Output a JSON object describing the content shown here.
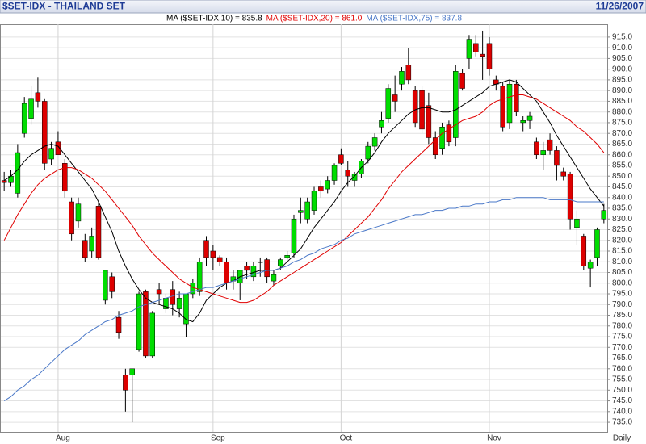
{
  "chart_data": {
    "type": "candlestick",
    "title": "$SET-IDX - THAILAND SET",
    "date": "11/26/2007",
    "xlabel": "Daily",
    "categories": [
      null,
      null,
      null,
      null,
      null,
      null,
      null,
      null,
      "Aug",
      null,
      null,
      null,
      null,
      null,
      null,
      null,
      null,
      null,
      null,
      null,
      null,
      null,
      null,
      null,
      null,
      null,
      null,
      null,
      null,
      null,
      null,
      "Sep",
      null,
      null,
      null,
      null,
      null,
      null,
      null,
      null,
      null,
      null,
      null,
      null,
      null,
      null,
      null,
      null,
      null,
      null,
      "Oct",
      null,
      null,
      null,
      null,
      null,
      null,
      null,
      null,
      null,
      null,
      null,
      null,
      null,
      null,
      null,
      null,
      null,
      null,
      null,
      null,
      null,
      "Nov",
      null,
      null,
      null,
      null,
      null,
      null,
      null,
      null,
      null,
      null,
      null,
      null,
      null,
      null,
      null,
      null,
      null
    ],
    "open": [
      848,
      847,
      842,
      870,
      877,
      889,
      885,
      858,
      866,
      856,
      838,
      829,
      820,
      815,
      836,
      792,
      803,
      784,
      757,
      757,
      769,
      796,
      766,
      797,
      788,
      797,
      788,
      781,
      795,
      796,
      820,
      815,
      812,
      810,
      801,
      800,
      808,
      803,
      810,
      811,
      801,
      808,
      812,
      814,
      833,
      830,
      834,
      845,
      844,
      848,
      860,
      853,
      848,
      851,
      858,
      864,
      873,
      877,
      888,
      893,
      902,
      890,
      890,
      883,
      868,
      863,
      874,
      868,
      898,
      905,
      912,
      907,
      912,
      895,
      892,
      875,
      893,
      875,
      876,
      866,
      860,
      867,
      862,
      852,
      851,
      826,
      822,
      807,
      812,
      830
    ],
    "high": [
      852,
      853,
      865,
      887,
      892,
      896,
      886,
      866,
      871,
      858,
      840,
      840,
      823,
      826,
      838,
      806,
      805,
      787,
      760,
      760,
      796,
      797,
      787,
      800,
      795,
      801,
      796,
      795,
      802,
      812,
      822,
      818,
      813,
      812,
      806,
      806,
      810,
      810,
      812,
      812,
      806,
      812,
      815,
      832,
      840,
      840,
      845,
      848,
      850,
      856,
      863,
      857,
      852,
      858,
      866,
      870,
      880,
      893,
      897,
      901,
      910,
      892,
      892,
      889,
      871,
      875,
      876,
      902,
      900,
      916,
      916,
      918,
      915,
      897,
      894,
      895,
      895,
      878,
      880,
      868,
      866,
      870,
      864,
      854,
      852,
      834,
      823,
      811,
      826,
      837
    ],
    "low": [
      843,
      845,
      840,
      868,
      874,
      882,
      853,
      855,
      860,
      840,
      820,
      826,
      810,
      812,
      811,
      790,
      793,
      774,
      740,
      735,
      768,
      765,
      765,
      790,
      786,
      785,
      784,
      775,
      793,
      794,
      808,
      806,
      808,
      797,
      797,
      792,
      802,
      801,
      803,
      800,
      799,
      806,
      811,
      812,
      828,
      828,
      832,
      840,
      842,
      846,
      855,
      845,
      845,
      849,
      856,
      862,
      870,
      875,
      880,
      890,
      893,
      873,
      870,
      865,
      858,
      860,
      864,
      864,
      890,
      900,
      906,
      895,
      897,
      890,
      871,
      872,
      878,
      871,
      872,
      858,
      853,
      860,
      848,
      848,
      825,
      818,
      806,
      798,
      808,
      828
    ],
    "close": [
      847,
      850,
      861,
      884,
      886,
      885,
      856,
      863,
      860,
      843,
      823,
      837,
      812,
      822,
      812,
      806,
      796,
      777,
      750,
      760,
      795,
      766,
      786,
      795,
      793,
      790,
      793,
      795,
      800,
      810,
      812,
      812,
      810,
      800,
      803,
      806,
      806,
      808,
      810,
      803,
      804,
      811,
      813,
      830,
      834,
      838,
      843,
      843,
      848,
      855,
      856,
      850,
      851,
      857,
      864,
      868,
      876,
      891,
      885,
      899,
      895,
      875,
      872,
      868,
      860,
      873,
      866,
      899,
      891,
      914,
      908,
      906,
      900,
      893,
      873,
      893,
      880,
      876,
      878,
      860,
      862,
      862,
      855,
      850,
      830,
      830,
      808,
      810,
      825,
      834
    ],
    "up_color": "#00dd00",
    "down_color": "#dd0000",
    "series": [
      {
        "name": "MA ($SET-IDX,10) = 835.8",
        "color": "#000000",
        "values": [
          848,
          850,
          853,
          857,
          860,
          862,
          864,
          865,
          864,
          860,
          856,
          852,
          848,
          844,
          838,
          831,
          824,
          815,
          808,
          802,
          797,
          793,
          791,
          790,
          789,
          788,
          786,
          783,
          782,
          786,
          792,
          795,
          798,
          800,
          801,
          803,
          804,
          805,
          806,
          806,
          806,
          807,
          810,
          813,
          816,
          821,
          826,
          830,
          834,
          838,
          843,
          847,
          850,
          854,
          857,
          861,
          866,
          870,
          873,
          876,
          879,
          881,
          882,
          882,
          881,
          880,
          880,
          881,
          883,
          885,
          887,
          889,
          892,
          893,
          894,
          895,
          894,
          891,
          888,
          885,
          880,
          875,
          869,
          864,
          859,
          854,
          849,
          844,
          840,
          836
        ]
      },
      {
        "name": "MA ($SET-IDX,20) = 861.0",
        "color": "#e00000",
        "values": [
          820,
          826,
          832,
          837,
          842,
          846,
          849,
          851,
          853,
          854,
          854,
          853,
          851,
          849,
          846,
          843,
          839,
          835,
          831,
          827,
          822,
          818,
          814,
          811,
          808,
          805,
          802,
          800,
          798,
          797,
          796,
          795,
          794,
          793,
          792,
          791,
          791,
          792,
          794,
          796,
          799,
          801,
          803,
          805,
          807,
          809,
          811,
          813,
          815,
          817,
          819,
          822,
          825,
          828,
          831,
          835,
          839,
          844,
          848,
          852,
          855,
          858,
          861,
          864,
          867,
          870,
          872,
          874,
          876,
          877,
          878,
          880,
          883,
          885,
          886,
          887,
          888,
          888,
          887,
          886,
          884,
          882,
          880,
          878,
          876,
          873,
          871,
          868,
          865,
          861
        ]
      },
      {
        "name": "MA ($SET-IDX,75) = 837.8",
        "color": "#4a78c8",
        "values": [
          745,
          747,
          750,
          752,
          755,
          757,
          760,
          763,
          766,
          769,
          771,
          773,
          776,
          778,
          780,
          782,
          783,
          785,
          786,
          787,
          789,
          790,
          791,
          792,
          793,
          794,
          795,
          795,
          796,
          797,
          798,
          798,
          799,
          800,
          801,
          802,
          803,
          804,
          805,
          806,
          806,
          807,
          808,
          810,
          811,
          813,
          814,
          816,
          817,
          818,
          820,
          821,
          823,
          824,
          825,
          826,
          827,
          828,
          829,
          830,
          831,
          832,
          832,
          833,
          834,
          834,
          835,
          835,
          836,
          836,
          837,
          837,
          838,
          838,
          839,
          839,
          840,
          840,
          840,
          840,
          840,
          839,
          839,
          839,
          839,
          838,
          838,
          838,
          838,
          838
        ]
      }
    ],
    "ylim": [
      730.5,
      921
    ],
    "yticks": [
      {
        "value": 735,
        "label": "735.0"
      },
      {
        "value": 740,
        "label": "740.0"
      },
      {
        "value": 745,
        "label": "745.0"
      },
      {
        "value": 750,
        "label": "750.0"
      },
      {
        "value": 755,
        "label": "755.0"
      },
      {
        "value": 760,
        "label": "760.0"
      },
      {
        "value": 765,
        "label": "765.0"
      },
      {
        "value": 770,
        "label": "770.0"
      },
      {
        "value": 775,
        "label": "775.0"
      },
      {
        "value": 780,
        "label": "780.0"
      },
      {
        "value": 785,
        "label": "785.0"
      },
      {
        "value": 790,
        "label": "790.0"
      },
      {
        "value": 795,
        "label": "795.0"
      },
      {
        "value": 800,
        "label": "800.0"
      },
      {
        "value": 805,
        "label": "805.0"
      },
      {
        "value": 810,
        "label": "810.0"
      },
      {
        "value": 815,
        "label": "815.0"
      },
      {
        "value": 820,
        "label": "820.0"
      },
      {
        "value": 825,
        "label": "825.0"
      },
      {
        "value": 830,
        "label": "830.0"
      },
      {
        "value": 835,
        "label": "835.0"
      },
      {
        "value": 840,
        "label": "840.0"
      },
      {
        "value": 845,
        "label": "845.0"
      },
      {
        "value": 850,
        "label": "850.0"
      },
      {
        "value": 855,
        "label": "855.0"
      },
      {
        "value": 860,
        "label": "860.0"
      },
      {
        "value": 865,
        "label": "865.0"
      },
      {
        "value": 870,
        "label": "870.0"
      },
      {
        "value": 875,
        "label": "875.0"
      },
      {
        "value": 880,
        "label": "880.0"
      },
      {
        "value": 885,
        "label": "885.0"
      },
      {
        "value": 890,
        "label": "890.0"
      },
      {
        "value": 895,
        "label": "895.0"
      },
      {
        "value": 900,
        "label": "900.0"
      },
      {
        "value": 905,
        "label": "905.0"
      },
      {
        "value": 910,
        "label": "910.0"
      },
      {
        "value": 915,
        "label": "915.0"
      }
    ],
    "grid": true
  }
}
